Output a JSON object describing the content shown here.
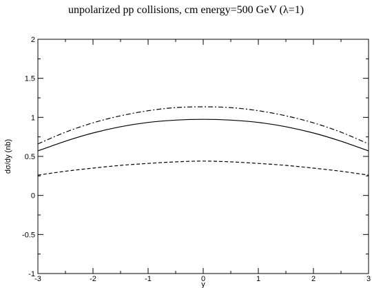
{
  "title": "unpolarized pp collisions, cm energy=500 GeV (λ=1)",
  "chart_data": {
    "type": "line",
    "xlabel": "y",
    "ylabel": "dσ/dy (nb)",
    "xlim": [
      -3,
      3
    ],
    "ylim": [
      -1,
      2
    ],
    "xticks": [
      -3,
      -2,
      -1,
      0,
      1,
      2,
      3
    ],
    "yticks": [
      -1,
      -0.5,
      0,
      0.5,
      1,
      1.5,
      2
    ],
    "xtick_labels": [
      "-3",
      "-2",
      "-1",
      "0",
      "1",
      "2",
      "3"
    ],
    "ytick_labels": [
      "-1",
      "-0.5",
      "0",
      "0.5",
      "1",
      "1.5",
      "2"
    ],
    "grid": false,
    "series": [
      {
        "style": "solid",
        "x": [
          -3,
          -2.5,
          -2,
          -1.5,
          -1,
          -0.5,
          0,
          0.5,
          1,
          1.5,
          2,
          2.5,
          3
        ],
        "y": [
          0.57,
          0.695,
          0.8,
          0.88,
          0.935,
          0.965,
          0.975,
          0.965,
          0.935,
          0.88,
          0.8,
          0.695,
          0.57
        ]
      },
      {
        "style": "dashdot",
        "x": [
          -3,
          -2.5,
          -2,
          -1.5,
          -1,
          -0.5,
          0,
          0.5,
          1,
          1.5,
          2,
          2.5,
          3
        ],
        "y": [
          0.66,
          0.81,
          0.93,
          1.02,
          1.085,
          1.125,
          1.135,
          1.125,
          1.085,
          1.02,
          0.93,
          0.81,
          0.66
        ]
      },
      {
        "style": "dashed",
        "x": [
          -3,
          -2.5,
          -2,
          -1.5,
          -1,
          -0.5,
          0,
          0.5,
          1,
          1.5,
          2,
          2.5,
          3
        ],
        "y": [
          0.26,
          0.31,
          0.35,
          0.385,
          0.41,
          0.43,
          0.44,
          0.43,
          0.41,
          0.385,
          0.35,
          0.31,
          0.26
        ]
      }
    ]
  }
}
